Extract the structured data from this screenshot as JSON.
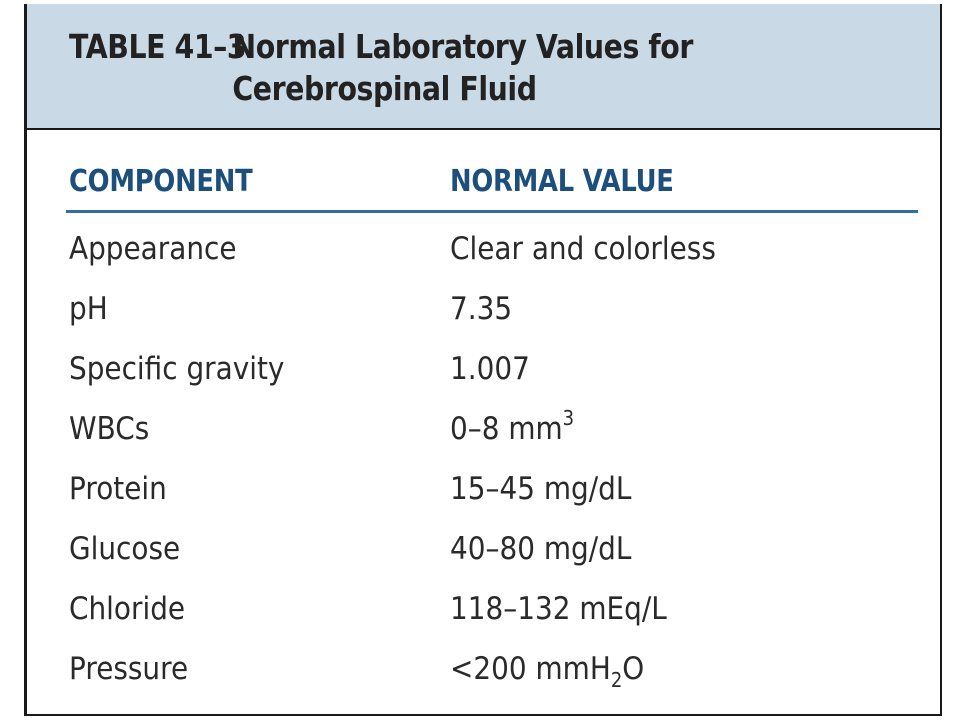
{
  "table": {
    "number": "TABLE 41–3",
    "title_line1": "Normal Laboratory Values for",
    "title_line2": "Cerebrospinal Fluid",
    "headers": {
      "component": "COMPONENT",
      "value": "NORMAL VALUE"
    },
    "rows": [
      {
        "component": "Appearance",
        "value": "Clear and colorless"
      },
      {
        "component": "pH",
        "value": "7.35"
      },
      {
        "component": "Specific gravity",
        "value": "1.007"
      },
      {
        "component": "WBCs",
        "value": "0–8 mm",
        "value_sup": "3"
      },
      {
        "component": "Protein",
        "value": "15–45 mg/dL"
      },
      {
        "component": "Glucose",
        "value": "40–80 mg/dL"
      },
      {
        "component": "Chloride",
        "value": "118–132 mEq/L"
      },
      {
        "component": "Pressure",
        "value": "<200 mmH",
        "value_sub": "2",
        "value_tail": "O"
      }
    ]
  },
  "colors": {
    "title_band": "#c9d9e5",
    "header_text": "#1d4f7c",
    "header_rule": "#2f6fa3",
    "body_text": "#2a2a2a"
  }
}
